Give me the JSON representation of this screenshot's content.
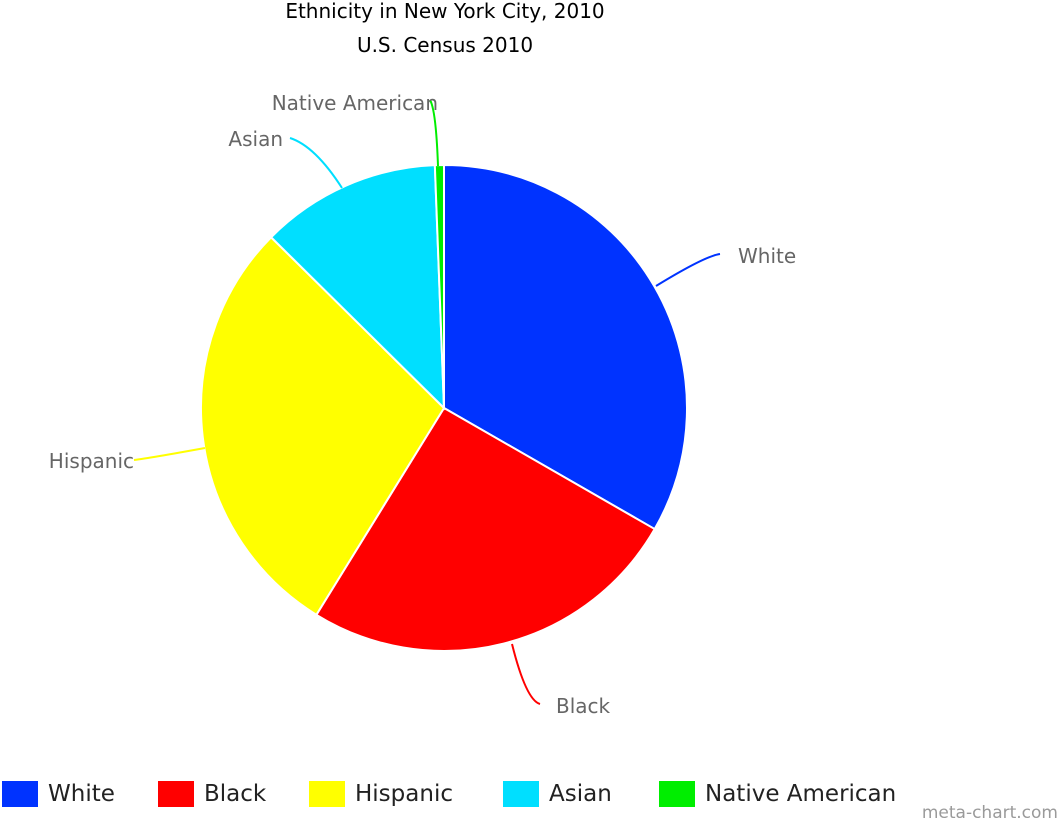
{
  "chart_data": {
    "type": "pie",
    "title": "Ethnicity in New York City, 2010",
    "subtitle": "U.S. Census 2010",
    "slices": [
      {
        "label": "White",
        "value": 33.3,
        "color": "#0033ff"
      },
      {
        "label": "Black",
        "value": 25.5,
        "color": "#ff0000"
      },
      {
        "label": "Hispanic",
        "value": 28.6,
        "color": "#ffff00"
      },
      {
        "label": "Asian",
        "value": 12.0,
        "color": "#00dfff"
      },
      {
        "label": "Native American",
        "value": 0.6,
        "color": "#00ee00"
      }
    ],
    "legend_position": "bottom"
  },
  "credit": "meta-chart.com"
}
